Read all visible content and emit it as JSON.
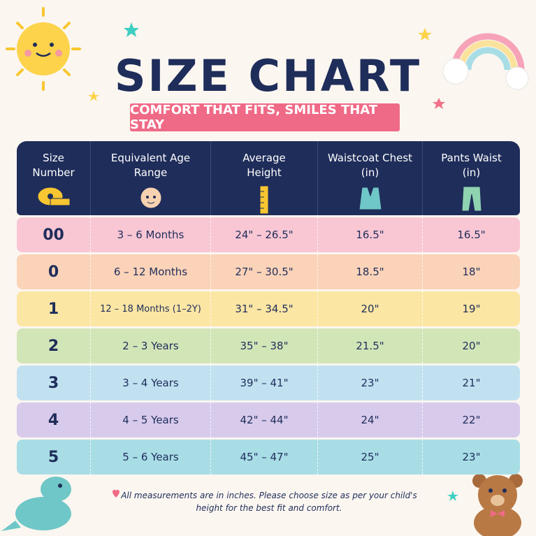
{
  "header": {
    "title": "SIZE CHART",
    "subtitle": "COMFORT THAT FITS, SMILES THAT STAY"
  },
  "table": {
    "columns": [
      "Size Number",
      "Equivalent Age Range",
      "Average Height",
      "Waistcoat Chest (in)",
      "Pants Waist (in)"
    ],
    "rows": [
      [
        "00",
        "3 – 6 Months",
        "24\" – 26.5\"",
        "16.5\"",
        "16.5\""
      ],
      [
        "0",
        "6 – 12 Months",
        "27\" – 30.5\"",
        "18.5\"",
        "18\""
      ],
      [
        "1",
        "12 – 18 Months (1–2Y)",
        "31\" – 34.5\"",
        "20\"",
        "19\""
      ],
      [
        "2",
        "2 – 3 Years",
        "35\" – 38\"",
        "21.5\"",
        "20\""
      ],
      [
        "3",
        "3 – 4 Years",
        "39\" – 41\"",
        "23\"",
        "21\""
      ],
      [
        "4",
        "4 – 5 Years",
        "42\" – 44\"",
        "24\"",
        "22\""
      ],
      [
        "5",
        "5 – 6 Years",
        "45\" – 47\"",
        "25\"",
        "23\""
      ]
    ]
  },
  "footer": {
    "note": "All measurements are in inches. Please choose size as per your child's height for the best fit and comfort."
  }
}
